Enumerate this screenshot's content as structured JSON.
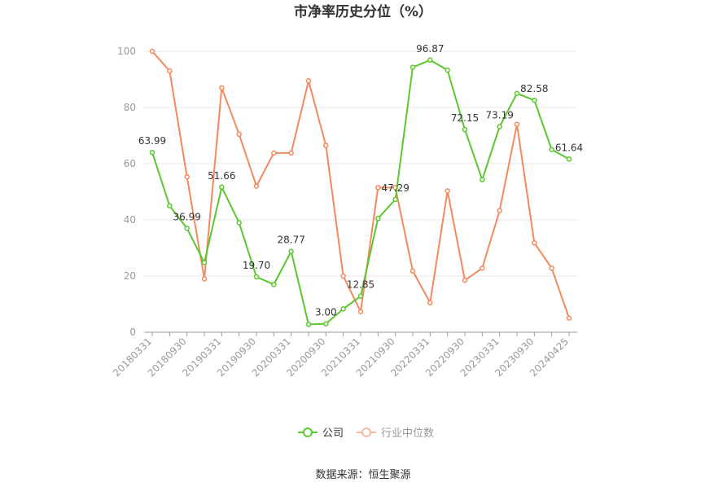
{
  "chart_data": {
    "type": "line",
    "title": "市净率历史分位（%）",
    "source": "数据来源：恒生聚源",
    "ylim": [
      0,
      100
    ],
    "yticks": [
      0,
      20,
      40,
      60,
      80,
      100
    ],
    "x_tick_labels": [
      "20180331",
      "20180930",
      "20190331",
      "20190930",
      "20200331",
      "20200930",
      "20210331",
      "20210930",
      "20220331",
      "20220930",
      "20230331",
      "20230930",
      "20240425"
    ],
    "x": [
      "20180331",
      "20180630",
      "20180930",
      "20181231",
      "20190331",
      "20190630",
      "20190930",
      "20191231",
      "20200331",
      "20200630",
      "20200930",
      "20201231",
      "20210331",
      "20210630",
      "20210930",
      "20211231",
      "20220331",
      "20220630",
      "20220930",
      "20221231",
      "20230331",
      "20230630",
      "20230930",
      "20231231",
      "20240425"
    ],
    "series": [
      {
        "name": "公司",
        "color": "#5bc72e",
        "values": [
          63.99,
          45.0,
          36.99,
          24.8,
          51.66,
          39.0,
          19.7,
          17.0,
          28.77,
          2.8,
          3.0,
          8.3,
          12.85,
          40.5,
          47.29,
          94.3,
          96.87,
          93.3,
          72.15,
          54.3,
          73.19,
          85.0,
          82.58,
          65.0,
          61.64
        ],
        "labels": {
          "0": "63.99",
          "2": "36.99",
          "4": "51.66",
          "6": "19.70",
          "8": "28.77",
          "10": "3.00",
          "12": "12.85",
          "14": "47.29",
          "16": "96.87",
          "18": "72.15",
          "20": "73.19",
          "22": "82.58",
          "24": "61.64"
        }
      },
      {
        "name": "行业中位数",
        "color": "#f3895d",
        "values": [
          100.0,
          93.0,
          55.3,
          19.0,
          87.0,
          70.5,
          52.0,
          63.8,
          63.8,
          89.5,
          66.5,
          20.0,
          7.3,
          51.5,
          51.5,
          21.8,
          10.5,
          50.3,
          18.5,
          22.8,
          43.3,
          74.0,
          31.8,
          22.8,
          5.0
        ]
      }
    ],
    "legend_position": "bottom-center",
    "grid": true
  }
}
